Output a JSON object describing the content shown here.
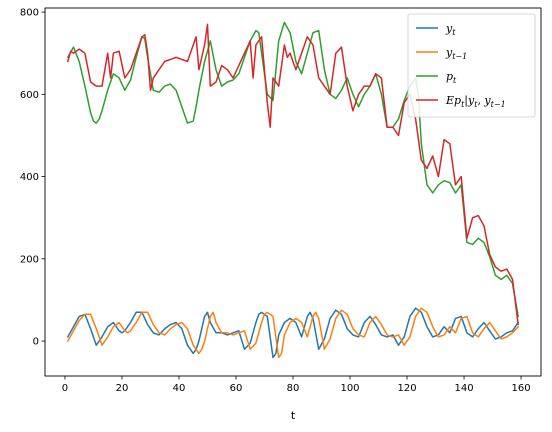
{
  "chart_data": {
    "type": "line",
    "title": "",
    "xlabel": "t",
    "ylabel": "",
    "xlim": [
      -7,
      167
    ],
    "ylim": [
      -85,
      810
    ],
    "xticks": [
      0,
      20,
      40,
      60,
      80,
      100,
      120,
      140,
      160
    ],
    "yticks": [
      0,
      200,
      400,
      600,
      800
    ],
    "grid": false,
    "legend": "top-right",
    "series": [
      {
        "name": "y_t",
        "legend_main": "y",
        "legend_sub": "t",
        "color": "#1f77b4",
        "x": [
          1,
          3,
          5,
          7,
          9,
          11,
          12,
          13,
          15,
          17,
          19,
          20,
          21,
          23,
          25,
          27,
          28,
          29,
          31,
          33,
          35,
          37,
          39,
          41,
          43,
          45,
          46,
          47,
          49,
          50,
          51,
          53,
          55,
          57,
          59,
          61,
          63,
          65,
          67,
          68,
          69,
          71,
          73,
          74,
          75,
          77,
          79,
          81,
          83,
          85,
          86,
          87,
          89,
          91,
          93,
          95,
          97,
          99,
          101,
          103,
          105,
          107,
          109,
          111,
          113,
          115,
          117,
          119,
          121,
          123,
          125,
          127,
          129,
          131,
          133,
          135,
          137,
          139,
          141,
          143,
          145,
          147,
          149,
          151,
          153,
          155,
          157,
          159
        ],
        "y": [
          10,
          35,
          60,
          65,
          30,
          -10,
          0,
          10,
          35,
          45,
          25,
          20,
          25,
          45,
          70,
          70,
          55,
          40,
          20,
          15,
          30,
          40,
          45,
          30,
          -10,
          -30,
          -20,
          0,
          60,
          70,
          45,
          20,
          20,
          15,
          20,
          25,
          -20,
          -5,
          45,
          65,
          70,
          60,
          -40,
          -30,
          15,
          45,
          55,
          45,
          10,
          60,
          70,
          55,
          -20,
          5,
          55,
          75,
          65,
          30,
          15,
          10,
          45,
          60,
          40,
          15,
          10,
          15,
          -10,
          10,
          60,
          80,
          70,
          35,
          10,
          15,
          35,
          20,
          55,
          60,
          20,
          10,
          30,
          45,
          25,
          5,
          10,
          20,
          25,
          45
        ]
      },
      {
        "name": "y_{t-1}",
        "legend_main": "y",
        "legend_sub": "t−1",
        "color": "#ff7f0e",
        "x": [
          1,
          3,
          5,
          7,
          9,
          11,
          13,
          14,
          15,
          17,
          19,
          21,
          22,
          23,
          25,
          27,
          29,
          30,
          31,
          33,
          35,
          37,
          39,
          41,
          43,
          45,
          47,
          48,
          49,
          51,
          52,
          53,
          55,
          57,
          59,
          61,
          63,
          65,
          67,
          69,
          70,
          71,
          73,
          75,
          76,
          77,
          79,
          81,
          83,
          85,
          87,
          88,
          89,
          91,
          93,
          95,
          97,
          99,
          101,
          103,
          105,
          107,
          109,
          111,
          113,
          115,
          117,
          119,
          121,
          123,
          125,
          127,
          129,
          131,
          133,
          135,
          137,
          139,
          141,
          143,
          145,
          147,
          149,
          151,
          153,
          155,
          157,
          159
        ],
        "y": [
          0,
          25,
          50,
          65,
          65,
          30,
          -10,
          0,
          10,
          35,
          45,
          25,
          20,
          25,
          45,
          70,
          70,
          55,
          40,
          20,
          15,
          30,
          40,
          45,
          30,
          -10,
          -30,
          -20,
          0,
          60,
          70,
          45,
          20,
          20,
          15,
          20,
          25,
          -20,
          -5,
          45,
          65,
          70,
          60,
          -40,
          -30,
          15,
          45,
          55,
          45,
          10,
          60,
          70,
          55,
          -20,
          5,
          55,
          75,
          65,
          30,
          15,
          10,
          45,
          60,
          40,
          15,
          10,
          15,
          -10,
          10,
          60,
          80,
          70,
          35,
          10,
          15,
          35,
          20,
          55,
          60,
          20,
          10,
          30,
          45,
          25,
          5,
          10,
          20,
          35
        ]
      },
      {
        "name": "p_t",
        "legend_main": "p",
        "legend_sub": "t",
        "color": "#2ca02c",
        "x": [
          1,
          3,
          5,
          7,
          9,
          10,
          11,
          12,
          13,
          15,
          17,
          19,
          21,
          23,
          25,
          27,
          28,
          29,
          31,
          33,
          35,
          37,
          39,
          41,
          43,
          45,
          46,
          47,
          49,
          51,
          53,
          55,
          57,
          59,
          61,
          63,
          65,
          67,
          68,
          69,
          71,
          73,
          75,
          77,
          79,
          81,
          83,
          85,
          87,
          89,
          91,
          93,
          95,
          97,
          99,
          101,
          103,
          105,
          107,
          109,
          111,
          113,
          115,
          117,
          119,
          121,
          123,
          124,
          125,
          127,
          129,
          131,
          133,
          135,
          137,
          139,
          141,
          143,
          145,
          147,
          149,
          151,
          153,
          155,
          157,
          159
        ],
        "y": [
          690,
          715,
          680,
          620,
          555,
          535,
          530,
          540,
          560,
          610,
          650,
          640,
          610,
          635,
          690,
          740,
          735,
          690,
          610,
          605,
          620,
          625,
          610,
          570,
          530,
          535,
          570,
          610,
          680,
          730,
          660,
          620,
          630,
          635,
          650,
          690,
          730,
          755,
          750,
          700,
          600,
          585,
          730,
          775,
          750,
          680,
          650,
          700,
          750,
          755,
          660,
          600,
          590,
          610,
          640,
          600,
          570,
          600,
          620,
          650,
          600,
          520,
          520,
          540,
          585,
          620,
          640,
          600,
          480,
          380,
          360,
          380,
          390,
          385,
          360,
          380,
          240,
          235,
          250,
          240,
          205,
          160,
          150,
          160,
          140,
          60
        ]
      },
      {
        "name": "Ep_t|y_t, y_{t-1}",
        "legend_main": "Ep",
        "legend_sub": "t",
        "legend_rest": "|y",
        "legend_sub2": "t",
        "legend_rest2": ", y",
        "legend_sub3": "t−1",
        "color": "#d62728",
        "x": [
          1,
          2,
          3,
          5,
          7,
          9,
          10,
          11,
          13,
          15,
          16,
          17,
          19,
          21,
          23,
          25,
          27,
          28,
          29,
          30,
          31,
          33,
          35,
          37,
          39,
          41,
          43,
          45,
          46,
          47,
          49,
          50,
          51,
          53,
          55,
          57,
          59,
          61,
          63,
          65,
          66,
          67,
          69,
          71,
          72,
          73,
          75,
          77,
          78,
          79,
          81,
          83,
          85,
          87,
          89,
          91,
          93,
          95,
          97,
          99,
          101,
          103,
          105,
          107,
          109,
          111,
          113,
          115,
          117,
          119,
          121,
          123,
          125,
          127,
          129,
          131,
          133,
          135,
          137,
          139,
          141,
          143,
          145,
          147,
          149,
          151,
          153,
          155,
          157,
          159
        ],
        "y": [
          680,
          705,
          700,
          710,
          700,
          630,
          625,
          620,
          620,
          700,
          640,
          700,
          705,
          640,
          660,
          700,
          740,
          745,
          700,
          610,
          640,
          660,
          680,
          685,
          690,
          685,
          680,
          720,
          740,
          660,
          720,
          770,
          620,
          630,
          670,
          660,
          640,
          670,
          700,
          730,
          640,
          720,
          740,
          580,
          520,
          640,
          620,
          720,
          690,
          700,
          660,
          700,
          740,
          720,
          640,
          620,
          600,
          700,
          715,
          620,
          560,
          600,
          620,
          620,
          650,
          640,
          520,
          520,
          500,
          580,
          600,
          540,
          440,
          420,
          450,
          400,
          490,
          480,
          380,
          400,
          250,
          300,
          305,
          280,
          210,
          180,
          170,
          175,
          150,
          40
        ]
      }
    ]
  }
}
